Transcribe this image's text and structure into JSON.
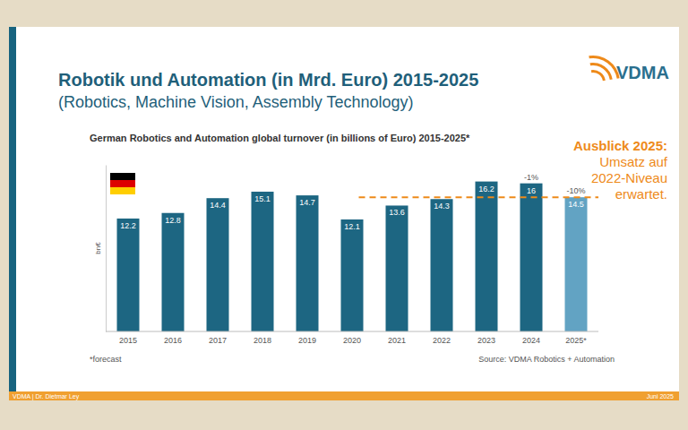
{
  "slide": {
    "title": "Robotik und Automation (in Mrd. Euro) 2015-2025",
    "subtitle": "(Robotics, Machine Vision, Assembly Technology)",
    "logo": "VDMA",
    "outlook": [
      "Ausblick 2025:",
      "Umsatz auf",
      "2022-Niveau",
      "erwartet."
    ],
    "footer_left": "VDMA | Dr. Dietmar Ley",
    "footer_right": "Juni 2025"
  },
  "chart_data": {
    "type": "bar",
    "title": "German Robotics and Automation global turnover (in billions of Euro) 2015-2025*",
    "ylabel": "bn€",
    "categories": [
      "2015",
      "2016",
      "2017",
      "2018",
      "2019",
      "2020",
      "2021",
      "2022",
      "2023",
      "2024",
      "2025*"
    ],
    "values": [
      12.2,
      12.8,
      14.4,
      15.1,
      14.7,
      12.1,
      13.6,
      14.3,
      16.2,
      16.0,
      14.5
    ],
    "colors": [
      "#1d6682",
      "#1d6682",
      "#1d6682",
      "#1d6682",
      "#1d6682",
      "#1d6682",
      "#1d6682",
      "#1d6682",
      "#1d6682",
      "#1d6682",
      "#62a3c3"
    ],
    "ylim": [
      0,
      18
    ],
    "tick_labels": "x",
    "data_labels": true,
    "annotations": [
      {
        "text": "-1%",
        "category": "2024"
      },
      {
        "text": "-10%",
        "category": "2025*"
      }
    ],
    "reference_line": {
      "value": 14.5,
      "from": "2021"
    },
    "footnote": "*forecast",
    "source": "Source: VDMA Robotics + Automation"
  }
}
